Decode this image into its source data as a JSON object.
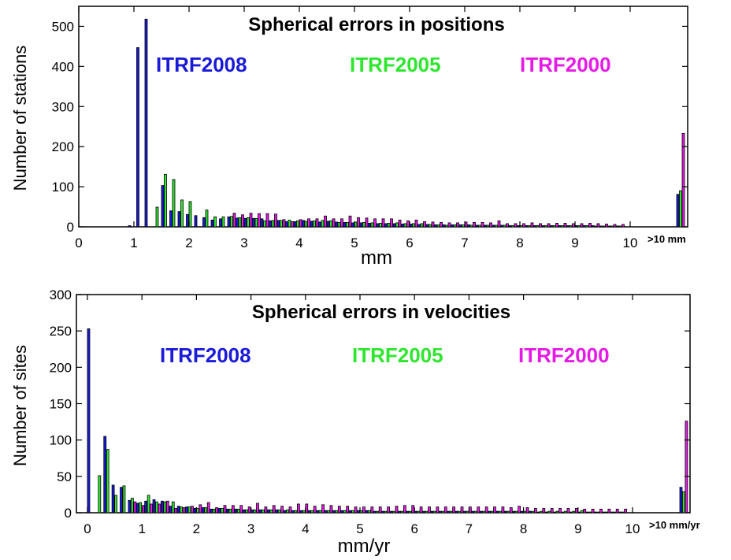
{
  "colors": {
    "itrf2008": "#1a1ad9",
    "itrf2005": "#2ee62e",
    "itrf2000": "#e61ae6"
  },
  "chart_data": [
    {
      "type": "bar",
      "title": "Spherical errors in positions",
      "xlabel": "mm",
      "ylabel": "Number of stations",
      "overflow_label": ">10 mm",
      "xlim": [
        0,
        11
      ],
      "ylim": [
        0,
        550
      ],
      "x_ticks": [
        "0",
        "1",
        "2",
        "3",
        "4",
        "5",
        "6",
        "7",
        "8",
        "9",
        "10"
      ],
      "y_ticks": [
        "0",
        "100",
        "200",
        "300",
        "400",
        "500"
      ],
      "bin_width": 0.15,
      "legend": [
        "ITRF2008",
        "ITRF2005",
        "ITRF2000"
      ],
      "x": [
        0.9,
        1.05,
        1.2,
        1.35,
        1.5,
        1.65,
        1.8,
        1.95,
        2.1,
        2.25,
        2.4,
        2.55,
        2.7,
        2.85,
        3.0,
        3.15,
        3.3,
        3.45,
        3.6,
        3.75,
        3.9,
        4.05,
        4.2,
        4.35,
        4.5,
        4.65,
        4.8,
        4.95,
        5.1,
        5.25,
        5.4,
        5.55,
        5.7,
        5.85,
        6.0,
        6.15,
        6.3,
        6.45,
        6.6,
        6.75,
        6.9,
        7.05,
        7.2,
        7.35,
        7.5,
        7.65,
        7.8,
        7.95,
        8.1,
        8.25,
        8.4,
        8.55,
        8.7,
        8.85,
        9.0,
        9.15,
        9.3,
        9.45,
        9.6,
        9.75,
        ">10"
      ],
      "series": [
        {
          "name": "ITRF2008",
          "values": [
            3,
            447,
            518,
            0,
            103,
            40,
            38,
            31,
            28,
            23,
            17,
            20,
            25,
            22,
            21,
            21,
            20,
            15,
            16,
            13,
            13,
            16,
            14,
            12,
            14,
            12,
            11,
            10,
            10,
            9,
            8,
            8,
            8,
            7,
            7,
            6,
            6,
            5,
            5,
            5,
            5,
            5,
            4,
            4,
            4,
            4,
            3,
            3,
            3,
            3,
            3,
            3,
            3,
            3,
            3,
            3,
            3,
            2,
            2,
            2,
            81
          ]
        },
        {
          "name": "ITRF2005",
          "values": [
            0,
            0,
            0,
            49,
            131,
            118,
            67,
            63,
            0,
            42,
            25,
            25,
            26,
            23,
            23,
            21,
            15,
            16,
            16,
            17,
            15,
            14,
            15,
            16,
            15,
            11,
            11,
            12,
            11,
            10,
            9,
            9,
            10,
            8,
            8,
            8,
            6,
            5,
            4,
            5,
            5,
            4,
            4,
            4,
            4,
            4,
            3,
            3,
            3,
            3,
            3,
            3,
            3,
            3,
            3,
            3,
            2,
            2,
            2,
            2,
            90
          ]
        },
        {
          "name": "ITRF2000",
          "values": [
            0,
            0,
            0,
            0,
            0,
            0,
            0,
            0,
            0,
            0,
            0,
            0,
            34,
            30,
            34,
            33,
            33,
            32,
            18,
            13,
            18,
            20,
            20,
            27,
            20,
            20,
            27,
            23,
            22,
            20,
            20,
            20,
            17,
            15,
            17,
            13,
            12,
            11,
            10,
            10,
            12,
            11,
            11,
            10,
            15,
            8,
            8,
            8,
            10,
            8,
            8,
            9,
            9,
            8,
            8,
            9,
            8,
            7,
            6,
            6,
            233
          ]
        }
      ]
    },
    {
      "type": "bar",
      "title": "Spherical errors in velocities",
      "xlabel": "mm/yr",
      "ylabel": "Number of sites",
      "overflow_label": ">10 mm/yr",
      "xlim": [
        0,
        11
      ],
      "ylim": [
        0,
        300
      ],
      "x_ticks": [
        "0",
        "1",
        "2",
        "3",
        "4",
        "5",
        "6",
        "7",
        "8",
        "9",
        "10"
      ],
      "y_ticks": [
        "0",
        "50",
        "100",
        "150",
        "200",
        "250",
        "300"
      ],
      "bin_width": 0.15,
      "legend": [
        "ITRF2008",
        "ITRF2005",
        "ITRF2000"
      ],
      "x": [
        0.0,
        0.15,
        0.3,
        0.45,
        0.6,
        0.75,
        0.9,
        1.05,
        1.2,
        1.35,
        1.5,
        1.65,
        1.8,
        1.95,
        2.1,
        2.25,
        2.4,
        2.55,
        2.7,
        2.85,
        3.0,
        3.15,
        3.3,
        3.45,
        3.6,
        3.75,
        3.9,
        4.05,
        4.2,
        4.35,
        4.5,
        4.65,
        4.8,
        4.95,
        5.1,
        5.25,
        5.4,
        5.55,
        5.7,
        5.85,
        6.0,
        6.15,
        6.3,
        6.45,
        6.6,
        6.75,
        6.9,
        7.05,
        7.2,
        7.35,
        7.5,
        7.65,
        7.8,
        7.95,
        8.1,
        8.25,
        8.4,
        8.55,
        8.7,
        8.85,
        9.0,
        9.15,
        9.3,
        9.45,
        9.6,
        9.75,
        ">10"
      ],
      "series": [
        {
          "name": "ITRF2008",
          "values": [
            253,
            0,
            105,
            38,
            35,
            17,
            13,
            16,
            18,
            16,
            9,
            9,
            8,
            6,
            7,
            5,
            6,
            5,
            5,
            4,
            4,
            4,
            4,
            4,
            3,
            3,
            3,
            3,
            3,
            3,
            3,
            3,
            3,
            3,
            3,
            2,
            2,
            2,
            2,
            2,
            2,
            2,
            2,
            2,
            2,
            2,
            2,
            2,
            2,
            2,
            2,
            2,
            2,
            2,
            2,
            1,
            1,
            1,
            1,
            1,
            1,
            1,
            1,
            1,
            1,
            1,
            35
          ]
        },
        {
          "name": "ITRF2005",
          "values": [
            0,
            51,
            87,
            24,
            37,
            20,
            14,
            24,
            15,
            15,
            15,
            8,
            8,
            6,
            7,
            5,
            6,
            5,
            5,
            4,
            4,
            4,
            4,
            4,
            4,
            3,
            3,
            3,
            3,
            3,
            3,
            3,
            3,
            3,
            3,
            2,
            2,
            2,
            2,
            2,
            2,
            2,
            2,
            2,
            2,
            2,
            2,
            2,
            2,
            2,
            2,
            2,
            2,
            2,
            2,
            2,
            2,
            2,
            2,
            2,
            3,
            1,
            1,
            1,
            1,
            1,
            29
          ]
        },
        {
          "name": "ITRF2000",
          "values": [
            0,
            0,
            0,
            0,
            0,
            15,
            10,
            12,
            12,
            16,
            6,
            7,
            9,
            11,
            14,
            7,
            10,
            10,
            10,
            8,
            13,
            8,
            10,
            9,
            8,
            12,
            12,
            9,
            11,
            10,
            9,
            9,
            8,
            8,
            8,
            8,
            8,
            9,
            10,
            10,
            8,
            8,
            8,
            8,
            8,
            8,
            8,
            8,
            8,
            8,
            8,
            7,
            9,
            7,
            6,
            6,
            6,
            6,
            6,
            6,
            5,
            5,
            5,
            5,
            5,
            5,
            126
          ]
        }
      ]
    }
  ]
}
